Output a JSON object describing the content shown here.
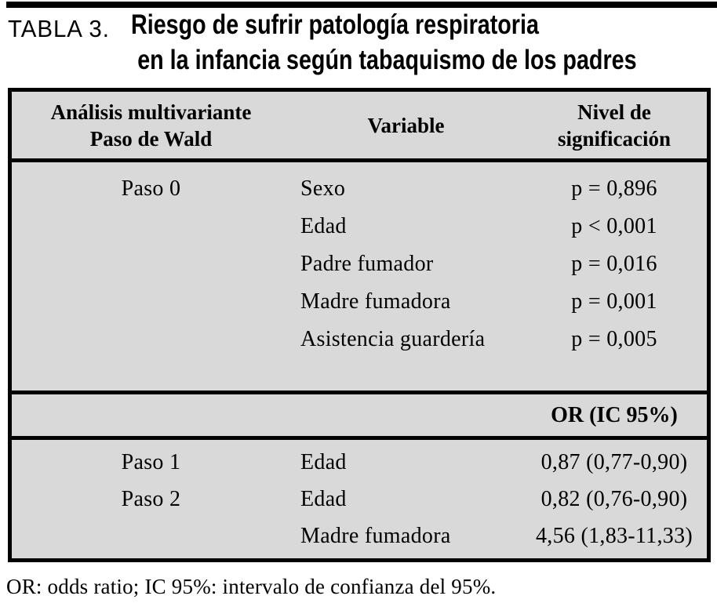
{
  "title": {
    "label": "TABLA 3.",
    "line1": "Riesgo de sufrir patología respiratoria",
    "line2": "en la infancia según tabaquismo de los padres"
  },
  "table": {
    "header": {
      "col1_line1": "Análisis multivariante",
      "col1_line2": "Paso de Wald",
      "col2": "Variable",
      "col3_line1": "Nivel de",
      "col3_line2": "significación"
    },
    "section1_rows": [
      {
        "paso": "Paso 0",
        "variable": "Sexo",
        "valor": "p = 0,896"
      },
      {
        "paso": "",
        "variable": "Edad",
        "valor": "p < 0,001"
      },
      {
        "paso": "",
        "variable": "Padre fumador",
        "valor": "p = 0,016"
      },
      {
        "paso": "",
        "variable": "Madre fumadora",
        "valor": "p = 0,001"
      },
      {
        "paso": "",
        "variable": "Asistencia guardería",
        "valor": "p = 0,005"
      }
    ],
    "or_header": "OR (IC 95%)",
    "section2_rows": [
      {
        "paso": "Paso 1",
        "variable": "Edad",
        "valor": "0,87 (0,77-0,90)"
      },
      {
        "paso": "Paso 2",
        "variable": "Edad",
        "valor": "0,82 (0,76-0,90)"
      },
      {
        "paso": "",
        "variable": "Madre fumadora",
        "valor": "4,56 (1,83-11,33)"
      }
    ]
  },
  "footnote": "OR: odds ratio; IC 95%: intervalo de confianza del 95%.",
  "colors": {
    "table_bg": "#d9d9d9",
    "border": "#000000",
    "text": "#000000"
  }
}
